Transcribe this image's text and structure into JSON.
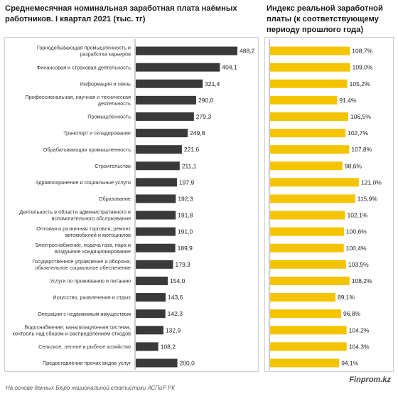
{
  "chart_data": [
    {
      "type": "bar",
      "orientation": "horizontal",
      "title": "Среднемесячная номинальная заработная плата наёмных работников. I квартал 2021 (тыс. тг)",
      "categories": [
        [
          "Горнодобывающая промышленность и",
          "разработка карьеров"
        ],
        [
          "Финансовая и страховая деятельность"
        ],
        [
          "Информация и связь"
        ],
        [
          "Профессиональная, научная и техническая",
          "деятельность"
        ],
        [
          "Промышленность"
        ],
        [
          "Транспорт и складирование"
        ],
        [
          "Обрабатывающая промышленность"
        ],
        [
          "Строительство"
        ],
        [
          "Здравоохранение и социальные услуги"
        ],
        [
          "Образование"
        ],
        [
          "Деятельность в области административного и",
          "вспомогательного обслуживания"
        ],
        [
          "Оптовая и розничная торговля; ремонт",
          "автомобилей и мотоциклов"
        ],
        [
          "Электроснабжение, подача газа, пара и",
          "воздушное кондиционирование"
        ],
        [
          "Государственное управление и оборона;",
          "обязательное социальное обеспечение"
        ],
        [
          "Услуги по проживанию и питанию"
        ],
        [
          "Искусство, развлечения и отдых"
        ],
        [
          "Операции с недвижимым имуществом"
        ],
        [
          "Водоснабжение; канализационная система,",
          "контроль над сбором и распределением отходов"
        ],
        [
          "Сельское, лесное и рыбное хозяйство"
        ],
        [
          "Предоставление прочих видов услуг"
        ]
      ],
      "values": [
        488.2,
        404.1,
        321.4,
        290.0,
        279.3,
        249.8,
        221.6,
        211.1,
        197.9,
        192.3,
        191.8,
        191.0,
        189.9,
        179.3,
        154.0,
        143.6,
        142.3,
        132.9,
        108.2,
        200.0
      ],
      "labels": [
        "488,2",
        "404,1",
        "321,4",
        "290,0",
        "279,3",
        "249,8",
        "221,6",
        "211,1",
        "197,9",
        "192,3",
        "191,8",
        "191,0",
        "189,9",
        "179,3",
        "154,0",
        "143,6",
        "142,3",
        "132,9",
        "108,2",
        "200,0"
      ],
      "color": "#3a3a3a"
    },
    {
      "type": "bar",
      "orientation": "horizontal",
      "title": "Индекс реальной заработной платы (к соответствующему периоду прошлого года)",
      "values": [
        108.7,
        109.0,
        105.2,
        91.4,
        106.5,
        102.7,
        107.8,
        98.6,
        121.0,
        115.9,
        102.1,
        100.6,
        100.4,
        103.5,
        108.2,
        89.1,
        96.8,
        104.2,
        104.3,
        94.1
      ],
      "labels": [
        "108,7%",
        "109,0%",
        "105,2%",
        "91,4%",
        "106,5%",
        "102,7%",
        "107,8%",
        "98,6%",
        "121,0%",
        "115,9%",
        "102,1%",
        "100,6%",
        "100,4%",
        "103,5%",
        "108,2%",
        "89,1%",
        "96,8%",
        "104,2%",
        "104,3%",
        "94,1%"
      ],
      "color": "#f5c400"
    }
  ],
  "brand": "Finprom.kz",
  "source": "На основе данных Бюро национальной статистики АСПиР РК"
}
